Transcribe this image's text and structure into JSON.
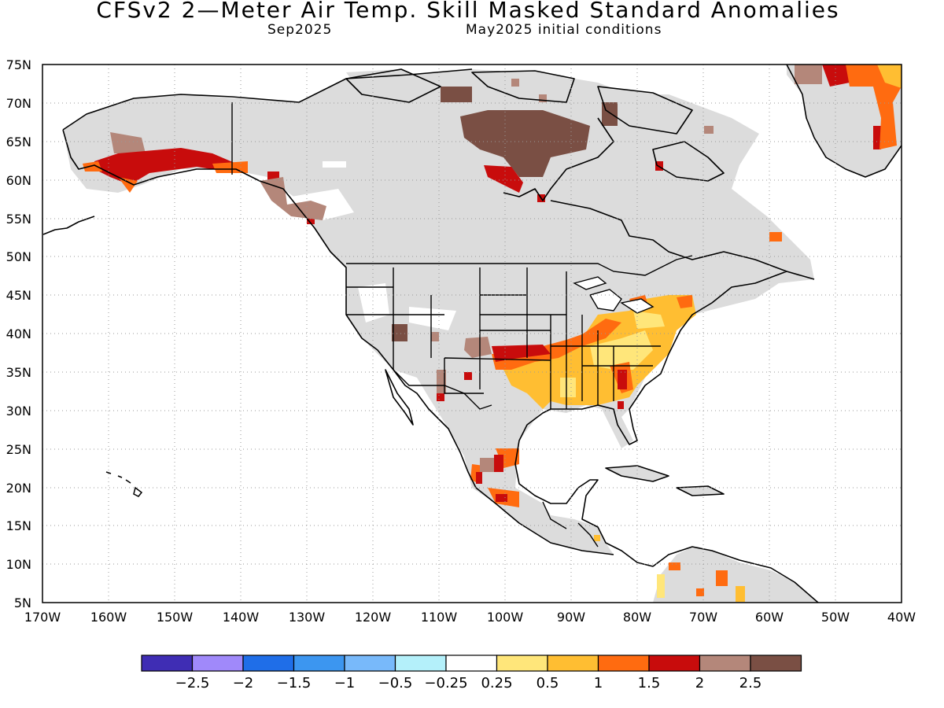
{
  "header": {
    "title": "CFSv2 2—Meter Air Temp. Skill Masked Standard Anomalies",
    "valid_month": "Sep2025",
    "init": "May2025 initial conditions"
  },
  "map": {
    "lat_ticks": [
      "75N",
      "70N",
      "65N",
      "60N",
      "55N",
      "50N",
      "45N",
      "40N",
      "35N",
      "30N",
      "25N",
      "20N",
      "15N",
      "10N",
      "5N"
    ],
    "lon_ticks": [
      "170W",
      "160W",
      "150W",
      "140W",
      "130W",
      "120W",
      "110W",
      "100W",
      "90W",
      "80W",
      "70W",
      "60W",
      "50W",
      "40W"
    ],
    "masked_color": "#dcdcdc",
    "ocean_color": "#ffffff"
  },
  "colorbar": {
    "colors": [
      "#3f2db4",
      "#a089fa",
      "#1f6ee8",
      "#3c96f0",
      "#78b9fa",
      "#b4f0fa",
      "#ffffff",
      "#ffe67a",
      "#ffbe32",
      "#ff6b10",
      "#c80c0c",
      "#b4877a",
      "#7a4f44"
    ],
    "labels": [
      "−2.5",
      "−2",
      "−1.5",
      "−1",
      "−0.5",
      "−0.25",
      "0.25",
      "0.5",
      "1",
      "1.5",
      "2",
      "2.5"
    ]
  }
}
